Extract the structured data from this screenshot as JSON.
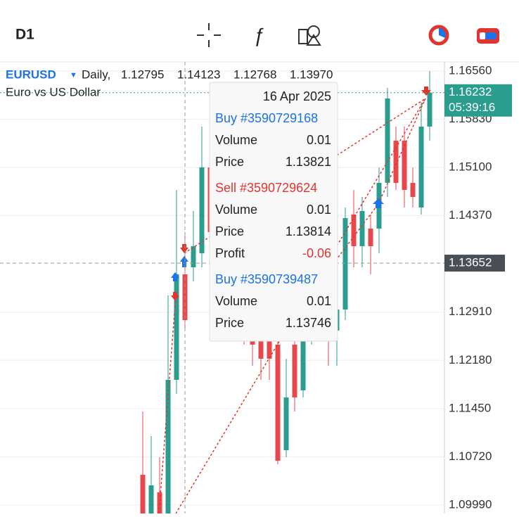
{
  "toolbar": {
    "timeframe": "D1"
  },
  "chart_data": {
    "type": "candlestick",
    "symbol": "EURUSD",
    "period": "Daily,",
    "ohlc_header": [
      "1.12795",
      "1.14123",
      "1.12768",
      "1.13970"
    ],
    "description": "Euro vs US Dollar",
    "open": [
      1.10448,
      1.09862,
      1.10182,
      1.09862,
      1.11885,
      1.13483,
      1.13589,
      1.13802,
      1.15101,
      1.14121,
      1.13163,
      1.1279,
      1.13376,
      1.12631,
      1.12524,
      1.12471,
      1.12418,
      1.1082,
      1.12418,
      1.11726,
      1.12524,
      1.13163,
      1.1295,
      1.12631,
      1.1295,
      1.14388,
      1.13908,
      1.14175,
      1.14175,
      1.14867,
      1.15506,
      1.15506,
      1.14867,
      1.14494,
      1.15719
    ],
    "high": [
      1.11406,
      1.11033,
      1.10714,
      1.13163,
      1.1476,
      1.14121,
      1.14441,
      1.15719,
      1.15506,
      1.14441,
      1.13483,
      1.13802,
      1.13589,
      1.1295,
      1.1279,
      1.12631,
      1.12524,
      1.12205,
      1.12524,
      1.1295,
      1.13483,
      1.13589,
      1.13163,
      1.13376,
      1.14494,
      1.1476,
      1.14654,
      1.14388,
      1.15101,
      1.16304,
      1.15719,
      1.15719,
      1.15101,
      1.16091,
      1.1656
    ],
    "low": [
      1.09756,
      1.09756,
      1.09756,
      1.09756,
      1.11672,
      1.12631,
      1.13376,
      1.13589,
      1.13802,
      1.1295,
      1.12524,
      1.12631,
      1.12418,
      1.12098,
      1.11885,
      1.11885,
      1.10607,
      1.10714,
      1.11406,
      1.11619,
      1.12418,
      1.12631,
      1.12098,
      1.12098,
      1.1279,
      1.13589,
      1.13589,
      1.13483,
      1.13802,
      1.14654,
      1.1476,
      1.14494,
      1.14494,
      1.14388,
      1.15506
    ],
    "close": [
      1.09862,
      1.10288,
      1.09862,
      1.11885,
      1.13483,
      1.1279,
      1.13908,
      1.15101,
      1.14121,
      1.13163,
      1.1279,
      1.13376,
      1.12631,
      1.12418,
      1.12205,
      1.12205,
      1.10661,
      1.11619,
      1.11619,
      1.12524,
      1.13163,
      1.1295,
      1.12631,
      1.1295,
      1.14334,
      1.13908,
      1.14441,
      1.13908,
      1.14867,
      1.16145,
      1.14867,
      1.1476,
      1.14654,
      1.15719,
      1.16232
    ],
    "up_color": "#2a9d8f",
    "down_color": "#e8484b",
    "ylim": [
      1.09862,
      1.16698
    ],
    "yticks": [
      {
        "value": 1.1656,
        "label": "1.16560"
      },
      {
        "value": 1.1583,
        "label": "1.15830"
      },
      {
        "value": 1.151,
        "label": "1.15100"
      },
      {
        "value": 1.1437,
        "label": "1.14370"
      },
      {
        "value": 1.1291,
        "label": "1.12910"
      },
      {
        "value": 1.1218,
        "label": "1.12180"
      },
      {
        "value": 1.1145,
        "label": "1.11450"
      },
      {
        "value": 1.1072,
        "label": "1.10720"
      },
      {
        "value": 1.0999,
        "label": "1.09990"
      }
    ],
    "current_price": {
      "value": 1.16232,
      "label": "1.16232"
    },
    "countdown": "05:39:16",
    "crosshair_price": {
      "value": 1.13652,
      "label": "1.13652"
    }
  },
  "tooltip": {
    "date": "16 Apr 2025",
    "orders": [
      {
        "title": "Buy #3590729168",
        "color": "#1a73e8",
        "rows": [
          [
            "Volume",
            "0.01"
          ],
          [
            "Price",
            "1.13821"
          ]
        ]
      },
      {
        "title": "Sell #3590729624",
        "color": "#e0352f",
        "rows": [
          [
            "Volume",
            "0.01"
          ],
          [
            "Price",
            "1.13814"
          ],
          [
            "Profit",
            "-0.06"
          ]
        ]
      },
      {
        "title": "Buy #3590739487",
        "color": "#1a73e8",
        "rows": [
          [
            "Volume",
            "0.01"
          ],
          [
            "Price",
            "1.13746"
          ]
        ]
      }
    ]
  }
}
